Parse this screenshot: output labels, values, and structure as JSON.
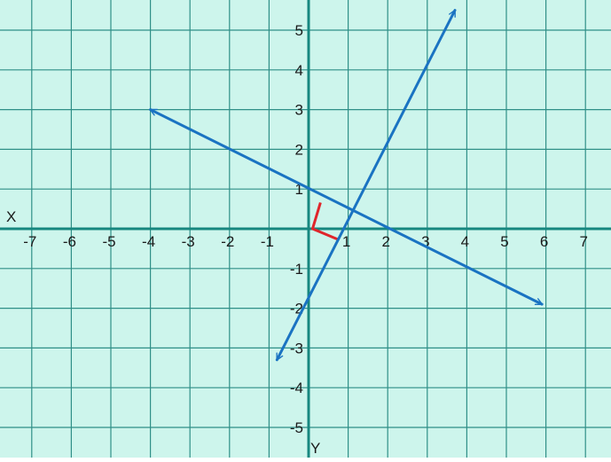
{
  "colors": {
    "background": "#cdf5ec",
    "grid": "#2f8f87",
    "axis": "#17877f",
    "line": "#1a73c2",
    "right_angle": "#e0262b"
  },
  "axes": {
    "x_label": "X",
    "y_label": "Y",
    "x_ticks": [
      -7,
      -6,
      -5,
      -4,
      -3,
      -2,
      -1,
      1,
      2,
      3,
      4,
      5,
      6,
      7
    ],
    "y_ticks": [
      5,
      4,
      3,
      2,
      1,
      -1,
      -2,
      -3,
      -4,
      -5
    ]
  },
  "lines": [
    {
      "name": "steep-line",
      "from": [
        -0.8,
        -3.3
      ],
      "to": [
        3.7,
        5.5
      ]
    },
    {
      "name": "shallow-line",
      "from": [
        -4.0,
        3.0
      ],
      "to": [
        5.9,
        -1.9
      ]
    }
  ],
  "right_angle_marker": {
    "points": [
      [
        0.3,
        0.66
      ],
      [
        0.1,
        0.0
      ],
      [
        0.75,
        -0.27
      ]
    ]
  }
}
